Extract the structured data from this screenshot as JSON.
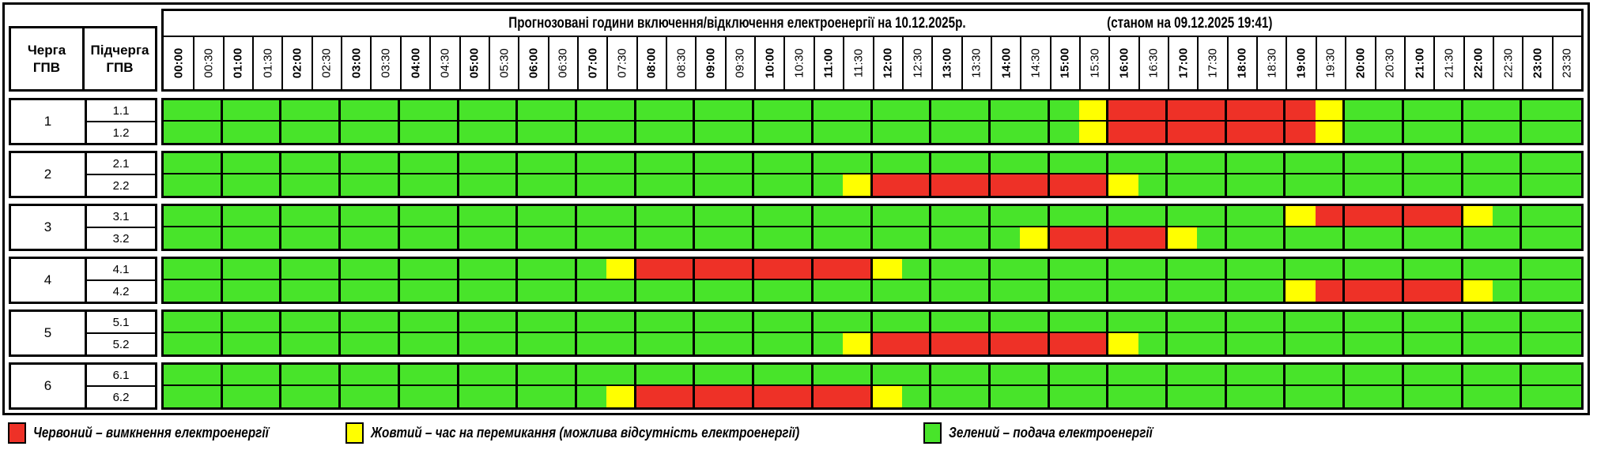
{
  "header": {
    "title": "Прогнозовані години включення/відключення електроенергії на 10.12.2025р.",
    "as_of": "(станом на 09.12.2025 19:41)"
  },
  "table": {
    "queue_header": "Черга ГПВ",
    "subqueue_header": "Підчерга ГПВ",
    "times": [
      "00:00",
      "00:30",
      "01:00",
      "01:30",
      "02:00",
      "02:30",
      "03:00",
      "03:30",
      "04:00",
      "04:30",
      "05:00",
      "05:30",
      "06:00",
      "06:30",
      "07:00",
      "07:30",
      "08:00",
      "08:30",
      "09:00",
      "09:30",
      "10:00",
      "10:30",
      "11:00",
      "11:30",
      "12:00",
      "12:30",
      "13:00",
      "13:30",
      "14:00",
      "14:30",
      "15:00",
      "15:30",
      "16:00",
      "16:30",
      "17:00",
      "17:30",
      "18:00",
      "18:30",
      "19:00",
      "19:30",
      "20:00",
      "20:30",
      "21:00",
      "21:30",
      "22:00",
      "22:30",
      "23:00",
      "23:30"
    ],
    "groups": [
      {
        "queue": "1",
        "subrows": [
          {
            "label": "1.1",
            "slots": "GGGGGGGGGGGGGGGGGGGGGGGGGGGGGGGYRRRRRRRYGGGGGGGG"
          },
          {
            "label": "1.2",
            "slots": "GGGGGGGGGGGGGGGGGGGGGGGGGGGGGGGYRRRRRRRYGGGGGGGG"
          }
        ]
      },
      {
        "queue": "2",
        "subrows": [
          {
            "label": "2.1",
            "slots": "GGGGGGGGGGGGGGGGGGGGGGGGGGGGGGGGGGGGGGGGGGGGGGGG"
          },
          {
            "label": "2.2",
            "slots": "GGGGGGGGGGGGGGGGGGGGGGGYRRRRRRRRYGGGGGGGGGGGGGGG"
          }
        ]
      },
      {
        "queue": "3",
        "subrows": [
          {
            "label": "3.1",
            "slots": "GGGGGGGGGGGGGGGGGGGGGGGGGGGGGGGGGGGGGGYRRRRRYGGG"
          },
          {
            "label": "3.2",
            "slots": "GGGGGGGGGGGGGGGGGGGGGGGGGGGGGYRRRRYGGGGGGGGGGGGG"
          }
        ]
      },
      {
        "queue": "4",
        "subrows": [
          {
            "label": "4.1",
            "slots": "GGGGGGGGGGGGGGGYRRRRRRRRYGGGGGGGGGGGGGGGGGGGGGGG"
          },
          {
            "label": "4.2",
            "slots": "GGGGGGGGGGGGGGGGGGGGGGGGGGGGGGGGGGGGGGYRRRRRYGGG"
          }
        ]
      },
      {
        "queue": "5",
        "subrows": [
          {
            "label": "5.1",
            "slots": "GGGGGGGGGGGGGGGGGGGGGGGGGGGGGGGGGGGGGGGGGGGGGGGG"
          },
          {
            "label": "5.2",
            "slots": "GGGGGGGGGGGGGGGGGGGGGGGYRRRRRRRRYGGGGGGGGGGGGGGG"
          }
        ]
      },
      {
        "queue": "6",
        "subrows": [
          {
            "label": "6.1",
            "slots": "GGGGGGGGGGGGGGGGGGGGGGGGGGGGGGGGGGGGGGGGGGGGGGGG"
          },
          {
            "label": "6.2",
            "slots": "GGGGGGGGGGGGGGGYRRRRRRRRYGGGGGGGGGGGGGGGGGGGGGGG"
          }
        ]
      }
    ]
  },
  "colors": {
    "G": "#48e42a",
    "Y": "#ffff00",
    "R": "#ee3127",
    "border": "#000000"
  },
  "legend": {
    "items": [
      {
        "key": "R",
        "name": "red",
        "label": "Червоний – вимкнення електроенергії"
      },
      {
        "key": "Y",
        "name": "yellow",
        "label": "Жовтий – час на перемикання (можлива відсутність електроенергії)"
      },
      {
        "key": "G",
        "name": "green",
        "label": "Зелений – подача електроенергії"
      }
    ]
  }
}
